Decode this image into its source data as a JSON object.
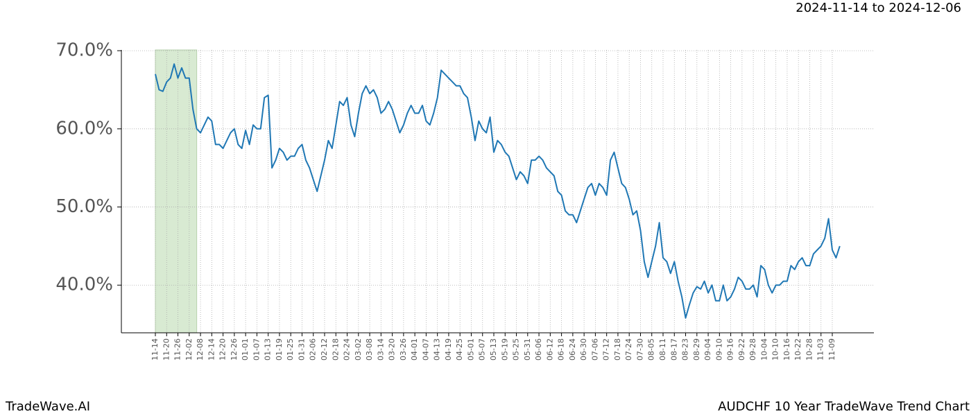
{
  "header": {
    "date_range": "2024-11-14 to 2024-12-06"
  },
  "footer": {
    "brand": "TradeWave.AI",
    "chart_name": "AUDCHF 10 Year TradeWave Trend Chart"
  },
  "chart_data": {
    "type": "line",
    "color": "#1f77b4",
    "grid": true,
    "highlight_range": [
      0,
      11
    ],
    "highlight_color": "#d8ead2",
    "ylim": [
      33.9,
      70.1
    ],
    "yticks": [
      {
        "value": 40,
        "label": "40.0%"
      },
      {
        "value": 50,
        "label": "50.0%"
      },
      {
        "value": 60,
        "label": "60.0%"
      },
      {
        "value": 70,
        "label": "70.0%"
      }
    ],
    "categories": [
      "11-14",
      null,
      null,
      "11-20",
      null,
      null,
      "11-26",
      null,
      null,
      "12-02",
      null,
      null,
      "12-08",
      null,
      null,
      "12-14",
      null,
      null,
      "12-20",
      null,
      null,
      "12-26",
      null,
      null,
      "01-01",
      null,
      null,
      "01-07",
      null,
      null,
      "01-13",
      null,
      null,
      "01-19",
      null,
      null,
      "01-25",
      null,
      null,
      "01-31",
      null,
      null,
      "02-06",
      null,
      null,
      "02-12",
      null,
      null,
      "02-18",
      null,
      null,
      "02-24",
      null,
      null,
      "03-02",
      null,
      null,
      "03-08",
      null,
      null,
      "03-14",
      null,
      null,
      "03-20",
      null,
      null,
      "03-26",
      null,
      null,
      "04-01",
      null,
      null,
      "04-07",
      null,
      null,
      "04-13",
      null,
      null,
      "04-19",
      null,
      null,
      "04-25",
      null,
      null,
      "05-01",
      null,
      null,
      "05-07",
      null,
      null,
      "05-13",
      null,
      null,
      "05-19",
      null,
      null,
      "05-25",
      null,
      null,
      "05-31",
      null,
      null,
      "06-06",
      null,
      null,
      "06-12",
      null,
      null,
      "06-18",
      null,
      null,
      "06-24",
      null,
      null,
      "06-30",
      null,
      null,
      "07-06",
      null,
      null,
      "07-12",
      null,
      null,
      "07-18",
      null,
      null,
      "07-24",
      null,
      null,
      "07-30",
      null,
      null,
      "08-05",
      null,
      null,
      "08-11",
      null,
      null,
      "08-17",
      null,
      null,
      "08-23",
      null,
      null,
      "08-29",
      null,
      null,
      "09-04",
      null,
      null,
      "09-10",
      null,
      null,
      "09-16",
      null,
      null,
      "09-22",
      null,
      null,
      "09-28",
      null,
      null,
      "10-04",
      null,
      null,
      "10-10",
      null,
      null,
      "10-16",
      null,
      null,
      "10-22",
      null,
      null,
      "10-28",
      null,
      null,
      "11-03",
      null,
      null,
      "11-09",
      null,
      null
    ],
    "values": [
      67.0,
      65.0,
      64.8,
      66.0,
      66.5,
      68.3,
      66.5,
      67.8,
      66.5,
      66.5,
      62.5,
      60.0,
      59.5,
      60.5,
      61.5,
      61.0,
      58.0,
      58.0,
      57.5,
      58.5,
      59.5,
      60.0,
      58.0,
      57.5,
      59.8,
      58.0,
      60.5,
      60.0,
      60.0,
      64.0,
      64.3,
      55.0,
      56.0,
      57.5,
      57.0,
      56.0,
      56.5,
      56.5,
      57.5,
      58.0,
      56.0,
      55.0,
      53.5,
      52.0,
      54.0,
      56.0,
      58.5,
      57.5,
      60.5,
      63.5,
      63.0,
      64.0,
      60.5,
      59.0,
      62.0,
      64.5,
      65.5,
      64.5,
      65.0,
      64.0,
      62.0,
      62.5,
      63.5,
      62.5,
      61.0,
      59.5,
      60.5,
      62.0,
      63.0,
      62.0,
      62.0,
      63.0,
      61.0,
      60.5,
      62.0,
      64.0,
      67.5,
      67.0,
      66.5,
      66.0,
      65.5,
      65.5,
      64.5,
      64.0,
      61.5,
      58.5,
      61.0,
      60.0,
      59.5,
      61.5,
      57.0,
      58.5,
      58.0,
      57.0,
      56.5,
      55.0,
      53.5,
      54.5,
      54.0,
      53.0,
      56.0,
      56.0,
      56.5,
      56.0,
      55.0,
      54.5,
      54.0,
      52.0,
      51.5,
      49.5,
      49.0,
      49.0,
      48.0,
      49.5,
      51.0,
      52.5,
      53.0,
      51.5,
      53.0,
      52.5,
      51.5,
      56.0,
      57.0,
      55.0,
      53.0,
      52.5,
      51.0,
      49.0,
      49.5,
      47.0,
      43.0,
      41.0,
      43.0,
      45.0,
      48.0,
      43.5,
      43.0,
      41.5,
      43.0,
      40.5,
      38.5,
      35.8,
      37.5,
      39.0,
      39.8,
      39.5,
      40.5,
      39.0,
      40.0,
      38.0,
      38.0,
      40.0,
      38.0,
      38.5,
      39.5,
      41.0,
      40.5,
      39.5,
      39.5,
      40.0,
      38.5,
      42.5,
      42.0,
      40.0,
      39.0,
      40.0,
      40.0,
      40.5,
      40.5,
      42.5,
      42.0,
      43.0,
      43.5,
      42.5,
      42.5,
      44.0,
      44.5,
      45.0,
      46.0,
      48.5,
      44.5,
      43.5,
      45.0
    ]
  }
}
